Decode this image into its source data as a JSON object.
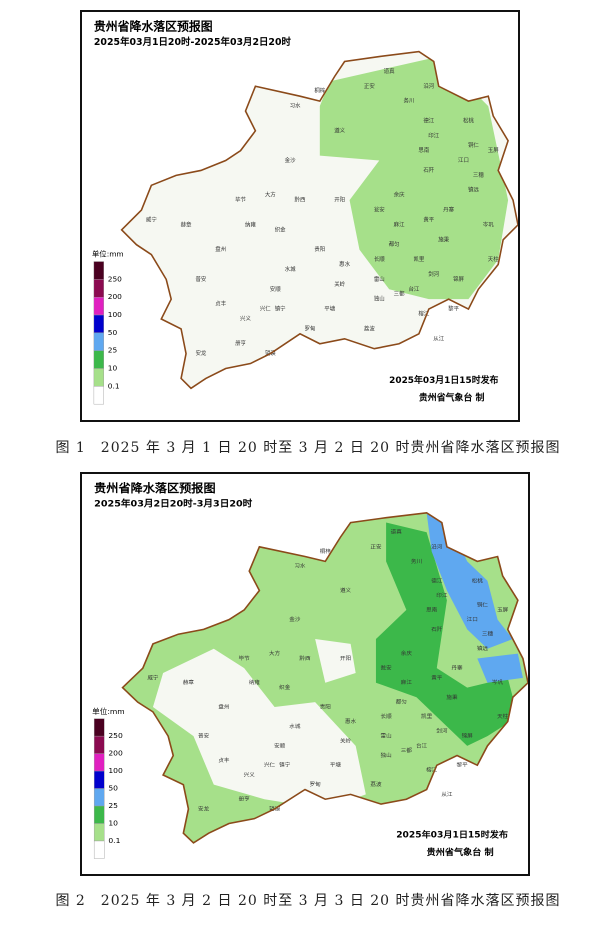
{
  "maps": [
    {
      "title": "贵州省降水落区预报图",
      "period": "2025年03月1日20时-2025年03月2日20时",
      "issued": "2025年03月1日15时发布",
      "agency": "贵州省气象台 制",
      "caption": "图 1　2025 年 3 月 1 日 20 时至 3 月 2 日 20 时贵州省降水落区预报图"
    },
    {
      "title": "贵州省降水落区预报图",
      "period": "2025年03月2日20时-3月3日20时",
      "issued": "2025年03月1日15时发布",
      "agency": "贵州省气象台 制",
      "caption": "图 2　2025 年 3 月 2 日 20 时至 3 月 3 日 20 时贵州省降水落区预报图"
    }
  ],
  "legend": {
    "title": "单位:mm",
    "levels": [
      250,
      200,
      100,
      50,
      25,
      10,
      0.1
    ]
  },
  "county_labels": [
    "习水",
    "正安",
    "道真",
    "务川",
    "沿河",
    "德江",
    "印江",
    "松桃",
    "铜仁",
    "江口",
    "石阡",
    "思南",
    "遵义",
    "桐梓",
    "金沙",
    "毕节",
    "大方",
    "赫章",
    "威宁",
    "黔西",
    "织金",
    "纳雍",
    "贵阳",
    "开阳",
    "瓮安",
    "余庆",
    "凯里",
    "天柱",
    "锦屏",
    "黎平",
    "榕江",
    "从江",
    "三都",
    "独山",
    "荔波",
    "平塘",
    "罗甸",
    "望谟",
    "册亨",
    "安龙",
    "兴义",
    "兴仁",
    "贞丰",
    "普安",
    "盘州",
    "水城",
    "安顺",
    "镇宁",
    "关岭",
    "惠水",
    "长顺",
    "都匀",
    "麻江",
    "黄平",
    "施秉",
    "剑河",
    "台江",
    "雷山",
    "丹寨",
    "镇远",
    "岑巩",
    "三穗",
    "玉屏",
    "万山"
  ]
}
